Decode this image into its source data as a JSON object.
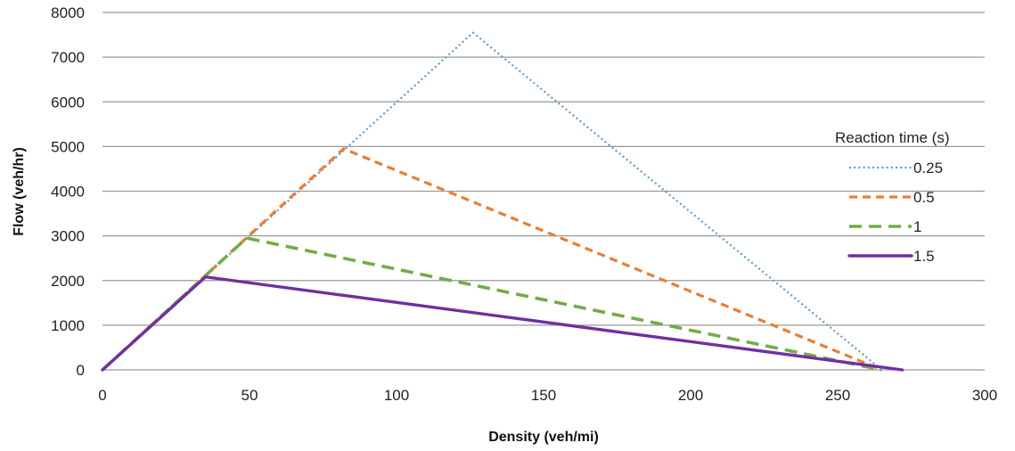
{
  "chart_data": {
    "type": "line",
    "title": "",
    "xlabel": "Density (veh/mi)",
    "ylabel": "Flow (veh/hr)",
    "xlim": [
      0,
      300
    ],
    "ylim": [
      0,
      8000
    ],
    "x_ticks": [
      0,
      50,
      100,
      150,
      200,
      250,
      300
    ],
    "y_ticks": [
      0,
      1000,
      2000,
      3000,
      4000,
      5000,
      6000,
      7000,
      8000
    ],
    "grid": "horizontal",
    "legend_position": "right",
    "legend_title": "Reaction time (s)",
    "series": [
      {
        "name": "0.25",
        "color": "#5b9bd5",
        "style": "dotted",
        "points": [
          [
            0,
            0
          ],
          [
            126,
            7550
          ],
          [
            265,
            0
          ]
        ]
      },
      {
        "name": "0.5",
        "color": "#ed7d31",
        "style": "short-dash",
        "points": [
          [
            0,
            0
          ],
          [
            82,
            4950
          ],
          [
            265,
            0
          ]
        ]
      },
      {
        "name": "1",
        "color": "#70ad47",
        "style": "long-dash",
        "points": [
          [
            0,
            0
          ],
          [
            49,
            2950
          ],
          [
            265,
            0
          ]
        ]
      },
      {
        "name": "1.5",
        "color": "#7030a0",
        "style": "solid",
        "points": [
          [
            0,
            0
          ],
          [
            35,
            2080
          ],
          [
            272,
            0
          ]
        ]
      }
    ]
  }
}
